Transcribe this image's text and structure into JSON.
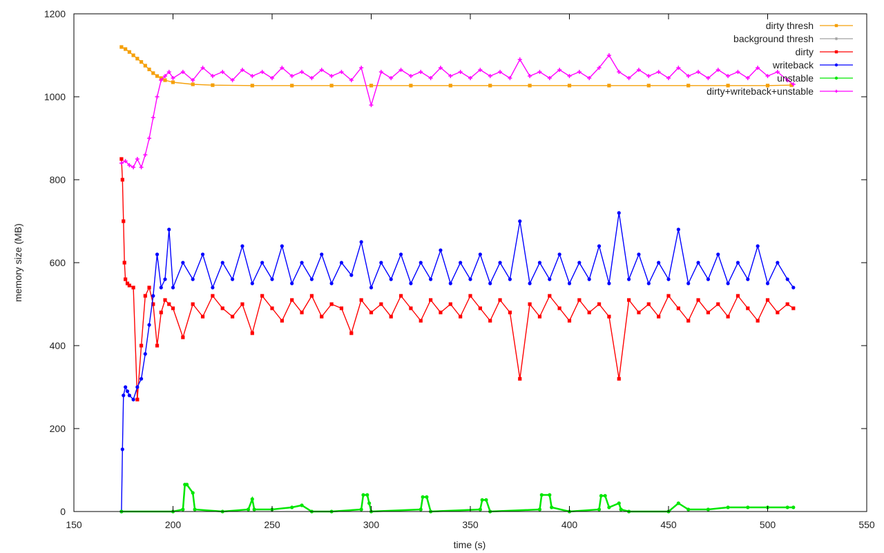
{
  "chart_data": {
    "type": "line",
    "title": "",
    "xlabel": "time (s)",
    "ylabel": "memory size (MB)",
    "xlim": [
      150,
      550
    ],
    "ylim": [
      0,
      1200
    ],
    "x_ticks": [
      150,
      200,
      250,
      300,
      350,
      400,
      450,
      500,
      550
    ],
    "y_ticks": [
      0,
      200,
      400,
      600,
      800,
      1000,
      1200
    ],
    "legend_position": "top-right",
    "grid": false,
    "series": [
      {
        "name": "dirty thresh",
        "color": "#f5a00a",
        "marker": "square",
        "x": [
          174,
          176,
          178,
          180,
          182,
          184,
          186,
          188,
          190,
          192,
          194,
          196,
          200,
          210,
          220,
          240,
          260,
          280,
          300,
          320,
          340,
          360,
          380,
          400,
          420,
          440,
          460,
          480,
          500,
          512
        ],
        "y": [
          1120,
          1115,
          1108,
          1100,
          1092,
          1084,
          1075,
          1066,
          1057,
          1050,
          1045,
          1040,
          1035,
          1030,
          1028,
          1027,
          1027,
          1027,
          1027,
          1027,
          1027,
          1027,
          1027,
          1027,
          1027,
          1027,
          1027,
          1027,
          1027,
          1028
        ]
      },
      {
        "name": "background thresh",
        "color": "#a0a0a0",
        "marker": "star",
        "x": [
          174,
          512
        ],
        "y": [
          null,
          null
        ]
      },
      {
        "name": "dirty",
        "color": "#ff0000",
        "marker": "square",
        "x": [
          174,
          174.5,
          175,
          175.5,
          176,
          177,
          178,
          180,
          182,
          184,
          186,
          188,
          190,
          192,
          194,
          196,
          198,
          200,
          205,
          210,
          215,
          220,
          225,
          230,
          235,
          240,
          245,
          250,
          255,
          260,
          265,
          270,
          275,
          280,
          285,
          290,
          295,
          300,
          305,
          310,
          315,
          320,
          325,
          330,
          335,
          340,
          345,
          350,
          355,
          360,
          365,
          370,
          375,
          380,
          385,
          390,
          395,
          400,
          405,
          410,
          415,
          420,
          425,
          430,
          435,
          440,
          445,
          450,
          455,
          460,
          465,
          470,
          475,
          480,
          485,
          490,
          495,
          500,
          505,
          510,
          513
        ],
        "y": [
          850,
          800,
          700,
          600,
          560,
          550,
          545,
          540,
          270,
          400,
          520,
          540,
          500,
          400,
          480,
          510,
          500,
          490,
          420,
          500,
          470,
          520,
          490,
          470,
          500,
          430,
          520,
          490,
          460,
          510,
          480,
          520,
          470,
          500,
          490,
          430,
          510,
          480,
          500,
          470,
          520,
          490,
          460,
          510,
          480,
          500,
          470,
          520,
          490,
          460,
          510,
          480,
          320,
          500,
          470,
          520,
          490,
          460,
          510,
          480,
          500,
          470,
          320,
          510,
          480,
          500,
          470,
          520,
          490,
          460,
          510,
          480,
          500,
          470,
          520,
          490,
          460,
          510,
          480,
          500,
          490
        ]
      },
      {
        "name": "writeback",
        "color": "#0000ff",
        "marker": "circle",
        "x": [
          174,
          174.5,
          175,
          176,
          177,
          178,
          180,
          182,
          184,
          186,
          188,
          190,
          192,
          194,
          196,
          198,
          200,
          205,
          210,
          215,
          220,
          225,
          230,
          235,
          240,
          245,
          250,
          255,
          260,
          265,
          270,
          275,
          280,
          285,
          290,
          295,
          300,
          305,
          310,
          315,
          320,
          325,
          330,
          335,
          340,
          345,
          350,
          355,
          360,
          365,
          370,
          375,
          380,
          385,
          390,
          395,
          400,
          405,
          410,
          415,
          420,
          425,
          430,
          435,
          440,
          445,
          450,
          455,
          460,
          465,
          470,
          475,
          480,
          485,
          490,
          495,
          500,
          505,
          510,
          513
        ],
        "y": [
          0,
          150,
          280,
          300,
          290,
          280,
          270,
          300,
          320,
          380,
          450,
          520,
          620,
          540,
          560,
          680,
          540,
          600,
          560,
          620,
          540,
          600,
          560,
          640,
          550,
          600,
          560,
          640,
          550,
          600,
          560,
          620,
          550,
          600,
          570,
          650,
          540,
          600,
          560,
          620,
          550,
          600,
          560,
          630,
          550,
          600,
          560,
          620,
          550,
          600,
          560,
          700,
          550,
          600,
          560,
          620,
          550,
          600,
          560,
          640,
          550,
          720,
          560,
          620,
          550,
          600,
          560,
          680,
          550,
          600,
          560,
          620,
          550,
          600,
          560,
          640,
          550,
          600,
          560,
          540
        ]
      },
      {
        "name": "unstable",
        "color": "#00e600",
        "marker": "circle",
        "x": [
          174,
          200,
          205,
          206,
          207,
          210,
          211,
          225,
          238,
          240,
          241,
          250,
          260,
          265,
          270,
          280,
          295,
          296,
          298,
          299,
          300,
          325,
          326,
          328,
          330,
          355,
          356,
          358,
          360,
          385,
          386,
          390,
          391,
          400,
          415,
          416,
          418,
          420,
          425,
          426,
          430,
          450,
          455,
          460,
          470,
          480,
          490,
          500,
          510,
          513
        ],
        "y": [
          0,
          0,
          5,
          65,
          65,
          45,
          5,
          0,
          5,
          30,
          5,
          5,
          10,
          15,
          0,
          0,
          5,
          40,
          40,
          20,
          0,
          5,
          35,
          35,
          0,
          5,
          28,
          28,
          0,
          5,
          40,
          40,
          10,
          0,
          5,
          38,
          38,
          10,
          20,
          5,
          0,
          0,
          20,
          5,
          5,
          10,
          10,
          10,
          10,
          10
        ]
      },
      {
        "name": "dirty+writeback+unstable",
        "color": "#ff00ff",
        "marker": "plus",
        "x": [
          174,
          176,
          178,
          180,
          182,
          184,
          186,
          188,
          190,
          192,
          194,
          196,
          198,
          200,
          205,
          210,
          215,
          220,
          225,
          230,
          235,
          240,
          245,
          250,
          255,
          260,
          265,
          270,
          275,
          280,
          285,
          290,
          295,
          300,
          305,
          310,
          315,
          320,
          325,
          330,
          335,
          340,
          345,
          350,
          355,
          360,
          365,
          370,
          375,
          380,
          385,
          390,
          395,
          400,
          405,
          410,
          415,
          420,
          425,
          430,
          435,
          440,
          445,
          450,
          455,
          460,
          465,
          470,
          475,
          480,
          485,
          490,
          495,
          500,
          505,
          510,
          513
        ],
        "y": [
          840,
          845,
          835,
          830,
          850,
          830,
          860,
          900,
          950,
          1000,
          1040,
          1050,
          1060,
          1045,
          1060,
          1040,
          1070,
          1050,
          1060,
          1040,
          1065,
          1050,
          1060,
          1045,
          1070,
          1050,
          1060,
          1045,
          1065,
          1050,
          1060,
          1040,
          1070,
          980,
          1060,
          1045,
          1065,
          1050,
          1060,
          1045,
          1070,
          1050,
          1060,
          1045,
          1065,
          1050,
          1060,
          1045,
          1090,
          1050,
          1060,
          1045,
          1065,
          1050,
          1060,
          1045,
          1070,
          1100,
          1060,
          1045,
          1065,
          1050,
          1060,
          1045,
          1070,
          1050,
          1060,
          1045,
          1065,
          1050,
          1060,
          1045,
          1070,
          1050,
          1060,
          1040,
          1030
        ]
      }
    ]
  }
}
